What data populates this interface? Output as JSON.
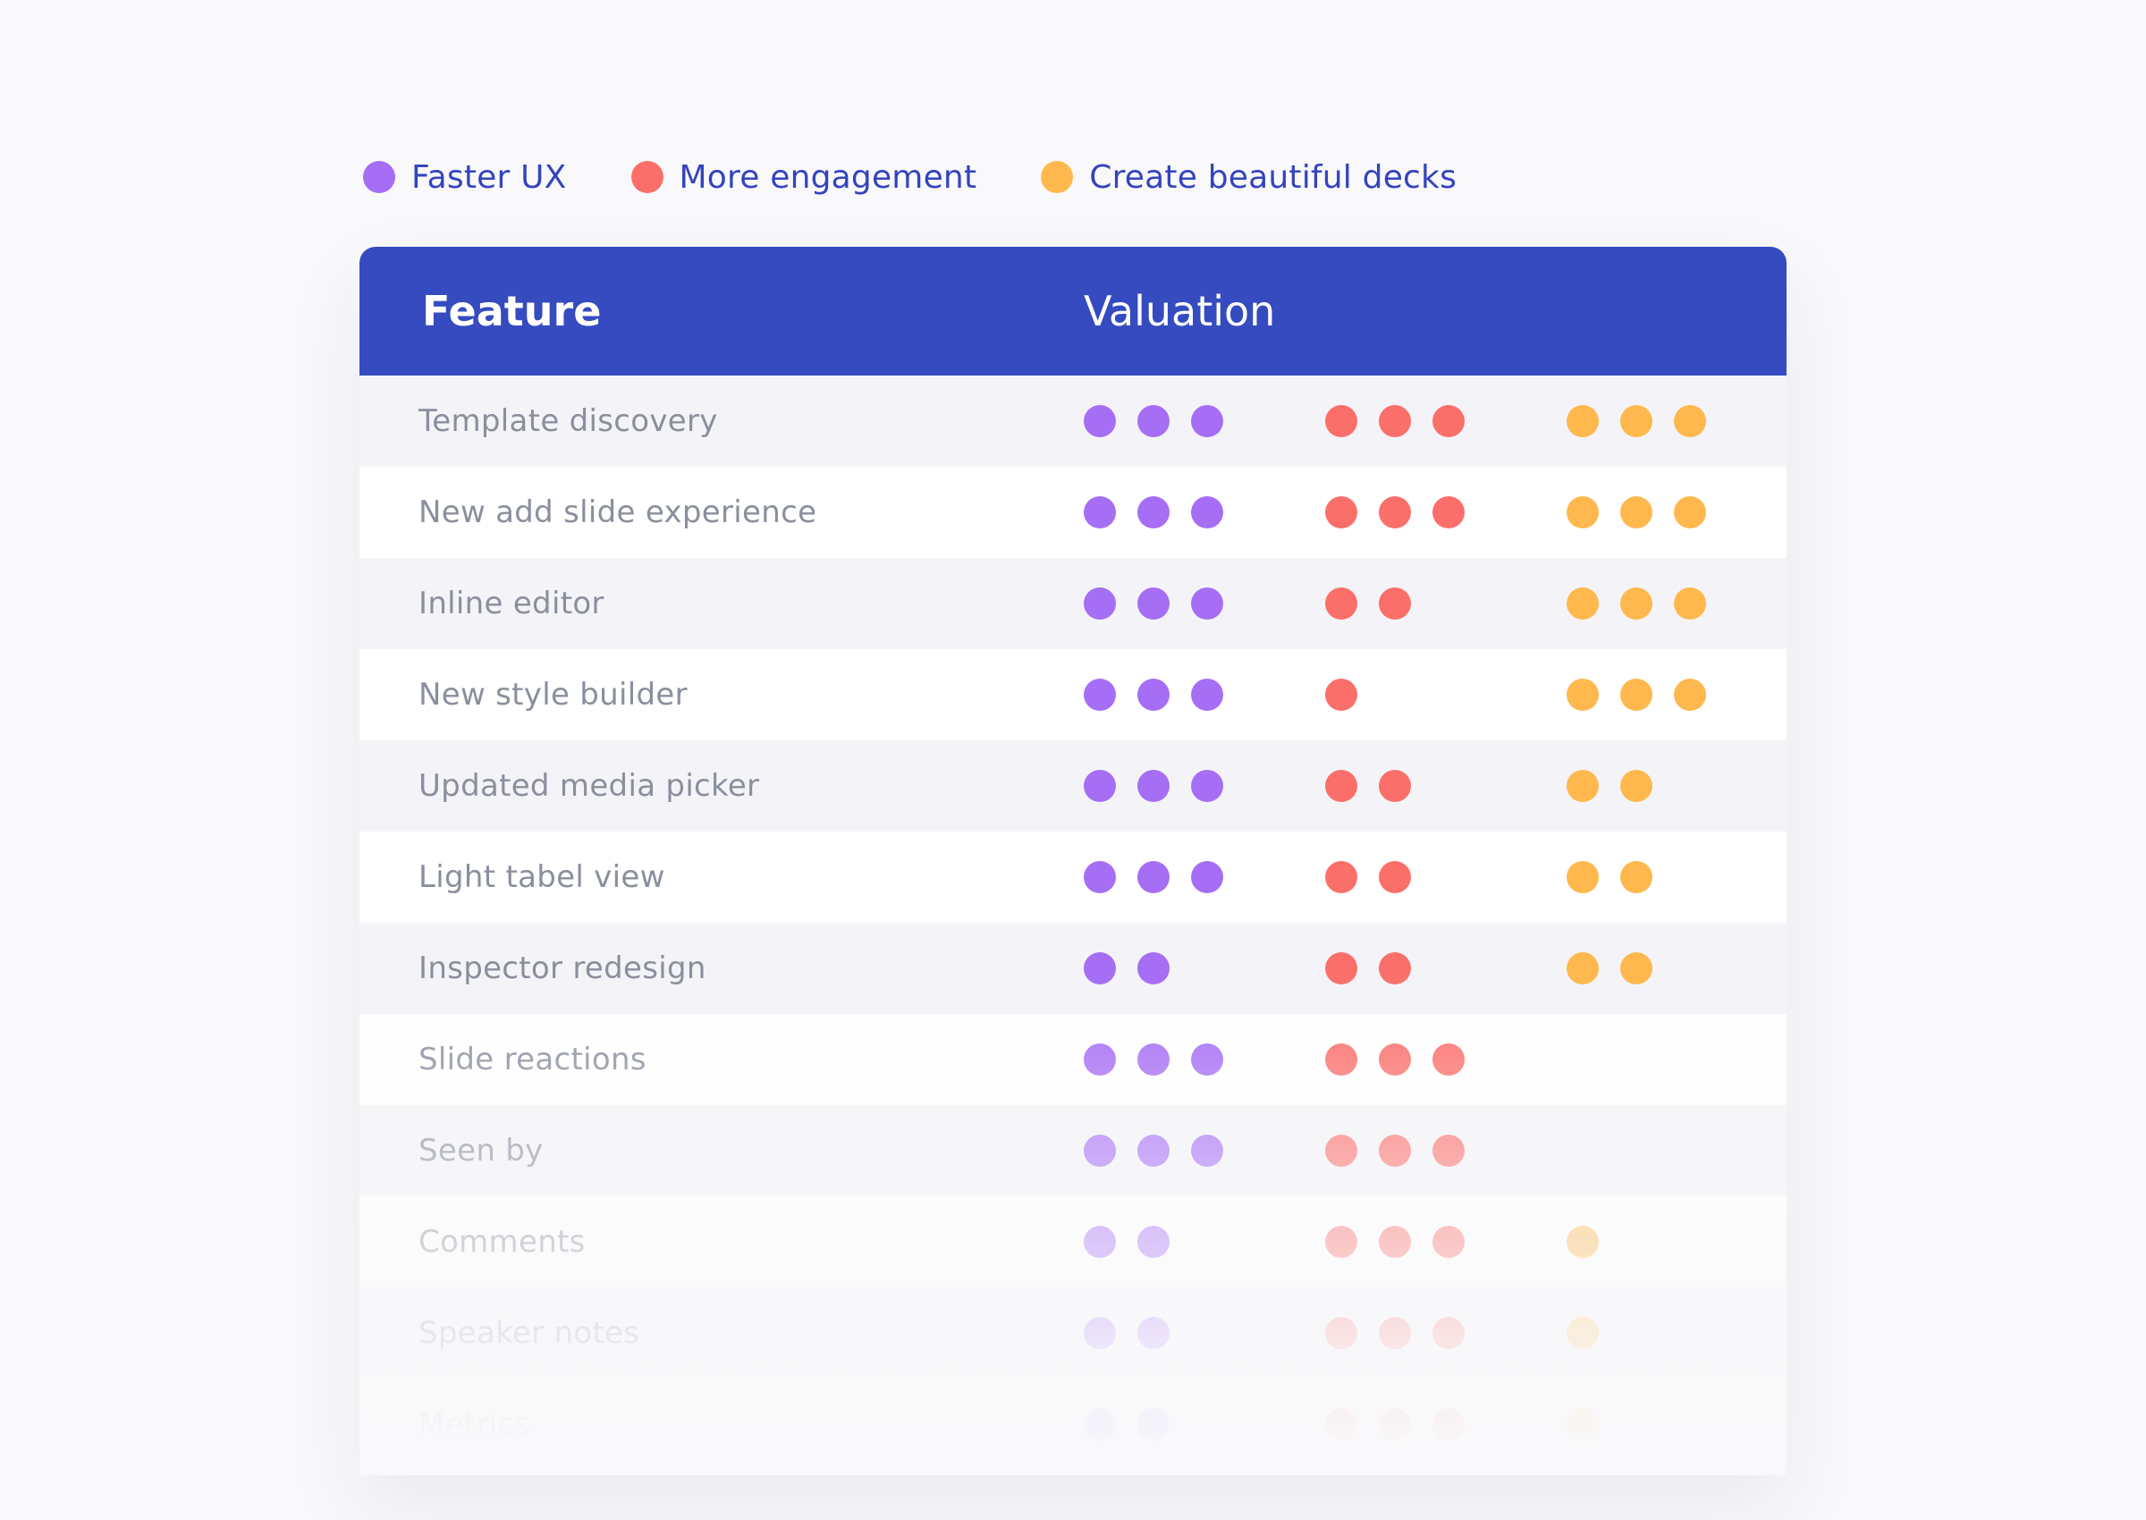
{
  "legend": [
    {
      "label": "Faster UX",
      "color": "#a66df5",
      "icon": "purple-dot-icon"
    },
    {
      "label": "More engagement",
      "color": "#fb6f6a",
      "icon": "red-dot-icon"
    },
    {
      "label": "Create beautiful decks",
      "color": "#ffb84d",
      "icon": "orange-dot-icon"
    }
  ],
  "table": {
    "header": {
      "feature": "Feature",
      "valuation": "Valuation"
    },
    "rows": [
      {
        "feature": "Template discovery",
        "ratings": [
          3,
          3,
          3
        ]
      },
      {
        "feature": "New add slide experience",
        "ratings": [
          3,
          3,
          3
        ]
      },
      {
        "feature": "Inline editor",
        "ratings": [
          3,
          2,
          3
        ]
      },
      {
        "feature": "New style builder",
        "ratings": [
          3,
          1,
          3
        ]
      },
      {
        "feature": "Updated media picker",
        "ratings": [
          3,
          2,
          2
        ]
      },
      {
        "feature": "Light tabel view",
        "ratings": [
          3,
          2,
          2
        ]
      },
      {
        "feature": "Inspector redesign",
        "ratings": [
          2,
          2,
          2
        ]
      },
      {
        "feature": "Slide reactions",
        "ratings": [
          3,
          3,
          0
        ]
      },
      {
        "feature": "Seen by",
        "ratings": [
          3,
          3,
          0
        ]
      },
      {
        "feature": "Comments",
        "ratings": [
          2,
          3,
          1
        ]
      },
      {
        "feature": "Speaker notes",
        "ratings": [
          2,
          3,
          1
        ]
      },
      {
        "feature": "Metrics",
        "ratings": [
          2,
          3,
          1
        ]
      }
    ]
  }
}
